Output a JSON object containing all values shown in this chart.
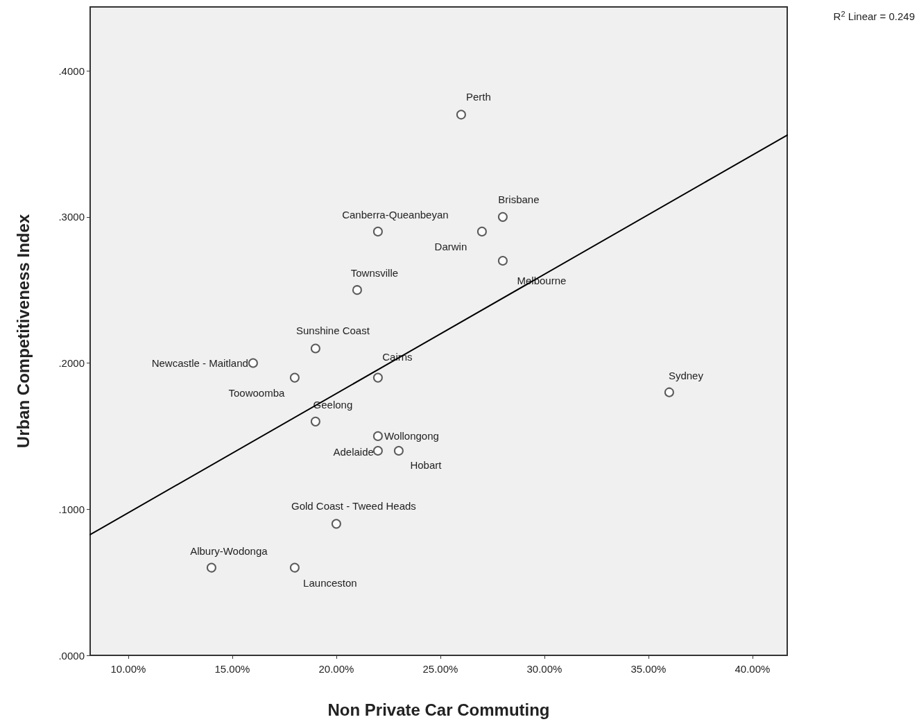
{
  "chart_data": {
    "type": "scatter",
    "xlabel": "Non Private Car Commuting",
    "ylabel": "Urban Competitiveness Index",
    "xlim": [
      8.17,
      41.67
    ],
    "ylim": [
      0,
      0.4437
    ],
    "xticks": [
      {
        "value": 10,
        "label": "10.00%"
      },
      {
        "value": 15,
        "label": "15.00%"
      },
      {
        "value": 20,
        "label": "20.00%"
      },
      {
        "value": 25,
        "label": "25.00%"
      },
      {
        "value": 30,
        "label": "30.00%"
      },
      {
        "value": 35,
        "label": "35.00%"
      },
      {
        "value": 40,
        "label": "40.00%"
      }
    ],
    "yticks": [
      {
        "value": 0,
        "label": ".0000"
      },
      {
        "value": 0.1,
        "label": ".1000"
      },
      {
        "value": 0.2,
        "label": ".2000"
      },
      {
        "value": 0.3,
        "label": ".3000"
      },
      {
        "value": 0.4,
        "label": ".4000"
      }
    ],
    "marker": "circle",
    "grid": false,
    "series": [
      {
        "color": "#333333",
        "x": [
          26,
          28,
          22,
          27,
          28,
          21,
          19,
          16,
          18,
          22,
          36,
          19,
          22,
          22,
          23,
          20,
          14,
          18
        ],
        "values": [
          0.37,
          0.3,
          0.29,
          0.29,
          0.27,
          0.25,
          0.21,
          0.2,
          0.19,
          0.19,
          0.18,
          0.16,
          0.15,
          0.14,
          0.14,
          0.09,
          0.06,
          0.06
        ]
      },
      {
        "type": "line",
        "color": "#000000",
        "marker": "none",
        "line_style": "solid",
        "x": [
          8.17,
          41.67
        ],
        "values": [
          0.0826,
          0.356
        ]
      }
    ],
    "annotations": [
      {
        "text": "Perth",
        "x": 26,
        "y": 0.37
      },
      {
        "text": "Brisbane",
        "x": 28,
        "y": 0.3
      },
      {
        "text": "Canberra-Queanbeyan",
        "x": 22,
        "y": 0.29
      },
      {
        "text": "Darwin",
        "x": 27,
        "y": 0.29
      },
      {
        "text": "Melbourne",
        "x": 28,
        "y": 0.27
      },
      {
        "text": "Townsville",
        "x": 21,
        "y": 0.25
      },
      {
        "text": "Sunshine Coast",
        "x": 19,
        "y": 0.21
      },
      {
        "text": "Newcastle - Maitland",
        "x": 16,
        "y": 0.2
      },
      {
        "text": "Toowoomba",
        "x": 18,
        "y": 0.19
      },
      {
        "text": "Cairns",
        "x": 22,
        "y": 0.19
      },
      {
        "text": "Sydney",
        "x": 36,
        "y": 0.18
      },
      {
        "text": "Geelong",
        "x": 19,
        "y": 0.16
      },
      {
        "text": "Wollongong",
        "x": 22,
        "y": 0.15
      },
      {
        "text": "Adelaide",
        "x": 22,
        "y": 0.14
      },
      {
        "text": "Hobart",
        "x": 23,
        "y": 0.14
      },
      {
        "text": "Gold Coast - Tweed Heads",
        "x": 20,
        "y": 0.09
      },
      {
        "text": "Albury-Wodonga",
        "x": 14,
        "y": 0.06
      },
      {
        "text": "Launceston",
        "x": 18,
        "y": 0.06
      },
      "R$^{2}$ Linear = 0.249"
    ]
  }
}
